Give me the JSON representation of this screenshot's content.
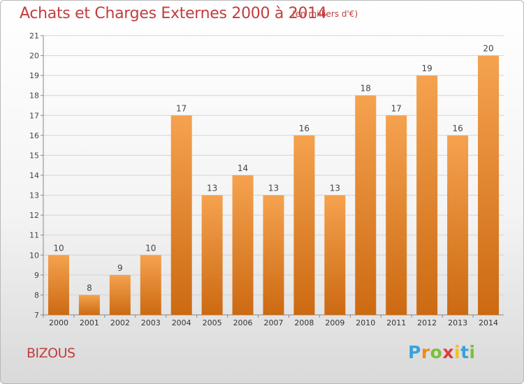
{
  "title": "Achats et Charges Externes 2000 à 2014",
  "subtitle": "(en milliers d'€)",
  "commune": "BIZOUS",
  "logo": {
    "letters": [
      "P",
      "r",
      "o",
      "x",
      "i",
      "t",
      "i"
    ],
    "colors": [
      "#3aa3d9",
      "#f08a1c",
      "#7cbf3a",
      "#e23a3a",
      "#f2c21a",
      "#3aa3d9",
      "#7cbf3a"
    ]
  },
  "colors": {
    "bar_top": "#f5a24f",
    "bar_bottom": "#cc6a12",
    "title": "#c23d3d"
  },
  "chart_data": {
    "type": "bar",
    "title": "Achats et Charges Externes 2000 à 2014",
    "subtitle": "(en milliers d'€)",
    "categories": [
      "2000",
      "2001",
      "2002",
      "2003",
      "2004",
      "2005",
      "2006",
      "2007",
      "2008",
      "2009",
      "2010",
      "2011",
      "2012",
      "2013",
      "2014"
    ],
    "values": [
      10,
      8,
      9,
      10,
      17,
      13,
      14,
      13,
      16,
      13,
      18,
      17,
      19,
      16,
      20
    ],
    "ylim": [
      7,
      21
    ],
    "yticks": [
      7,
      8,
      9,
      10,
      11,
      12,
      13,
      14,
      15,
      16,
      17,
      18,
      19,
      20,
      21
    ],
    "grid": true,
    "legend": "none"
  }
}
